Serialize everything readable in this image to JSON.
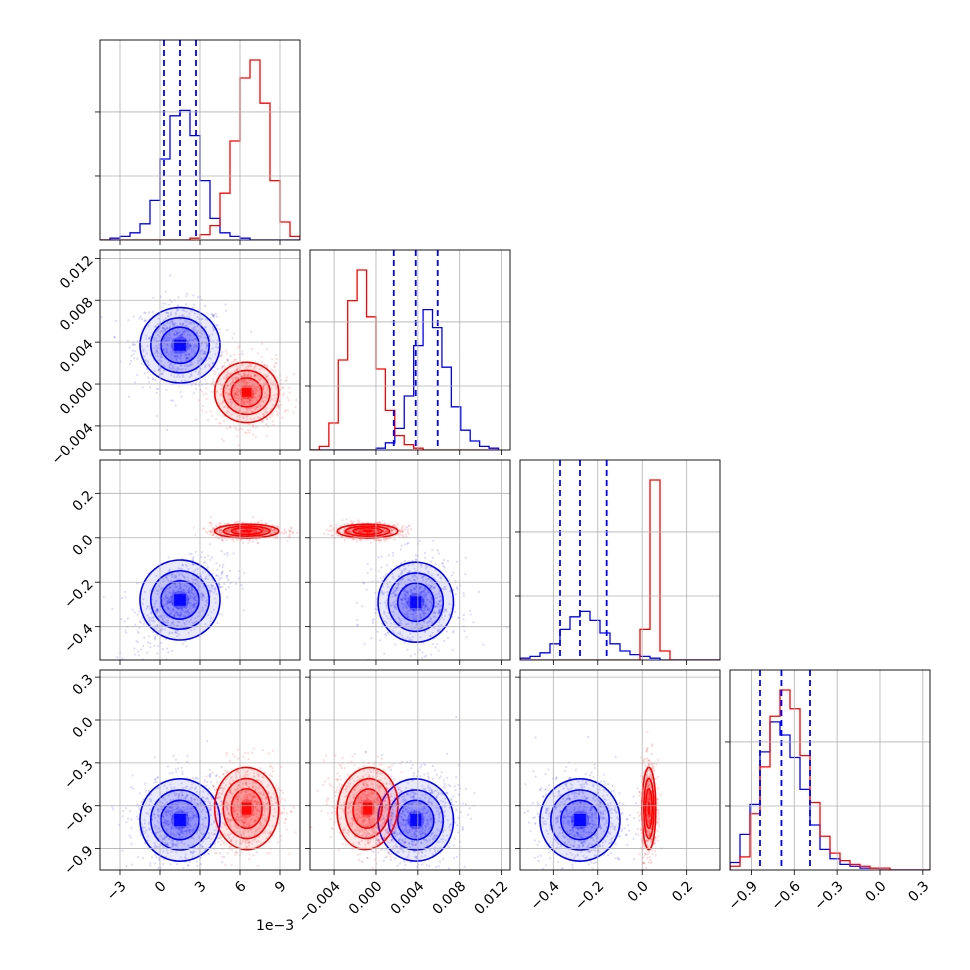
{
  "chart_data": {
    "type": "corner",
    "parameters": [
      "",
      "",
      "",
      ""
    ],
    "series": [
      {
        "name": "",
        "color": "#0000ff"
      },
      {
        "name": "",
        "color": "#ff0000"
      }
    ],
    "x_offset_label": "1e−3",
    "axes": [
      {
        "range": [
          -4.5,
          10.5
        ],
        "ticks": [
          -3,
          0,
          3,
          6,
          9
        ],
        "tick_labels": [
          "−3",
          "0",
          "3",
          "6",
          "9"
        ]
      },
      {
        "range": [
          -0.0063,
          0.0128
        ],
        "ticks": [
          -0.004,
          0.0,
          0.004,
          0.008,
          0.012
        ],
        "tick_labels": [
          "−0.004",
          "0.000",
          "0.004",
          "0.008",
          "0.012"
        ]
      },
      {
        "range": [
          -0.55,
          0.35
        ],
        "ticks": [
          -0.4,
          -0.2,
          0.0,
          0.2
        ],
        "tick_labels": [
          "−0.4",
          "−0.2",
          "0.0",
          "0.2"
        ]
      },
      {
        "range": [
          -1.05,
          0.35
        ],
        "ticks": [
          -0.9,
          -0.6,
          -0.3,
          0.0,
          0.3
        ],
        "tick_labels": [
          "−0.9",
          "−0.6",
          "−0.3",
          "0.0",
          "0.3"
        ]
      }
    ],
    "quantiles_blue": [
      [
        0.3,
        1.5,
        2.7
      ],
      [
        0.0017,
        0.0038,
        0.0059
      ],
      [
        -0.37,
        -0.28,
        -0.16
      ],
      [
        -0.84,
        -0.69,
        -0.49
      ]
    ],
    "histograms": [
      {
        "bin_edges": [
          -4.5,
          -3.75,
          -3.0,
          -2.25,
          -1.5,
          -0.75,
          0.0,
          0.75,
          1.5,
          2.25,
          3.0,
          3.75,
          4.5,
          5.25,
          6.0,
          6.75,
          7.5,
          8.25,
          9.0,
          9.75,
          10.5
        ],
        "blue": [
          0,
          0.01,
          0.02,
          0.04,
          0.09,
          0.22,
          0.45,
          0.69,
          0.72,
          0.58,
          0.33,
          0.12,
          0.04,
          0.02,
          0.01,
          0,
          0,
          0,
          0,
          0
        ],
        "red": [
          0,
          0,
          0,
          0,
          0,
          0,
          0,
          0,
          0,
          0.01,
          0.03,
          0.08,
          0.26,
          0.55,
          0.9,
          1.0,
          0.76,
          0.33,
          0.1,
          0.02
        ]
      },
      {
        "bin_edges": [
          -0.0063,
          -0.0054,
          -0.0045,
          -0.0036,
          -0.0027,
          -0.0018,
          -0.0009,
          0.0,
          0.0009,
          0.0018,
          0.0027,
          0.0036,
          0.0045,
          0.0054,
          0.0063,
          0.0072,
          0.0081,
          0.009,
          0.0099,
          0.0108,
          0.0117
        ],
        "blue": [
          0,
          0,
          0,
          0,
          0,
          0,
          0,
          0.01,
          0.04,
          0.12,
          0.3,
          0.58,
          0.78,
          0.68,
          0.46,
          0.24,
          0.11,
          0.05,
          0.02,
          0.01
        ],
        "red": [
          0,
          0.02,
          0.15,
          0.5,
          0.83,
          1.0,
          0.74,
          0.45,
          0.22,
          0.08,
          0.03,
          0.01,
          0,
          0,
          0,
          0,
          0,
          0,
          0,
          0
        ]
      },
      {
        "bin_edges": [
          -0.55,
          -0.505,
          -0.46,
          -0.415,
          -0.37,
          -0.325,
          -0.28,
          -0.235,
          -0.19,
          -0.145,
          -0.1,
          -0.055,
          -0.01,
          0.035,
          0.08,
          0.125,
          0.17,
          0.215,
          0.26,
          0.305,
          0.35
        ],
        "blue": [
          0.01,
          0.02,
          0.04,
          0.09,
          0.17,
          0.24,
          0.27,
          0.22,
          0.15,
          0.09,
          0.05,
          0.03,
          0.02,
          0.01,
          0,
          0,
          0,
          0,
          0,
          0
        ],
        "red": [
          0,
          0,
          0,
          0,
          0,
          0,
          0,
          0,
          0,
          0,
          0,
          0,
          0.17,
          1.0,
          0.05,
          0,
          0,
          0,
          0,
          0
        ]
      },
      {
        "bin_edges": [
          -1.05,
          -0.98,
          -0.91,
          -0.84,
          -0.77,
          -0.7,
          -0.63,
          -0.56,
          -0.49,
          -0.42,
          -0.35,
          -0.28,
          -0.21,
          -0.14,
          -0.07,
          0.0,
          0.07,
          0.14,
          0.21,
          0.28,
          0.35
        ],
        "blue": [
          0.04,
          0.19,
          0.35,
          0.63,
          0.79,
          0.72,
          0.6,
          0.43,
          0.24,
          0.11,
          0.06,
          0.03,
          0.02,
          0.01,
          0.01,
          0,
          0,
          0,
          0,
          0
        ],
        "red": [
          0.02,
          0.07,
          0.3,
          0.55,
          0.82,
          0.96,
          0.86,
          0.61,
          0.36,
          0.18,
          0.09,
          0.05,
          0.03,
          0.02,
          0.01,
          0.01,
          0,
          0,
          0,
          0
        ]
      }
    ],
    "pairs": [
      {
        "row": 1,
        "col": 0,
        "blue": {
          "mean": [
            1.5,
            0.0037
          ],
          "sd": [
            1.25,
            0.0015
          ],
          "rho": -0.05
        },
        "red": {
          "mean": [
            6.5,
            -0.0008
          ],
          "sd": [
            1.0,
            0.0012
          ],
          "rho": -0.05
        }
      },
      {
        "row": 2,
        "col": 0,
        "blue": {
          "mean": [
            1.5,
            -0.28
          ],
          "sd": [
            1.25,
            0.075
          ],
          "rho": 0.5
        },
        "red": {
          "mean": [
            6.5,
            0.03
          ],
          "sd": [
            1.0,
            0.013
          ],
          "rho": 0.0
        }
      },
      {
        "row": 2,
        "col": 1,
        "blue": {
          "mean": [
            0.0038,
            -0.29
          ],
          "sd": [
            0.0015,
            0.075
          ],
          "rho": -0.05
        },
        "red": {
          "mean": [
            -0.0008,
            0.03
          ],
          "sd": [
            0.0012,
            0.013
          ],
          "rho": 0.0
        }
      },
      {
        "row": 3,
        "col": 0,
        "blue": {
          "mean": [
            1.5,
            -0.7
          ],
          "sd": [
            1.25,
            0.12
          ],
          "rho": 0.1
        },
        "red": {
          "mean": [
            6.5,
            -0.62
          ],
          "sd": [
            1.0,
            0.12
          ],
          "rho": 0.05
        }
      },
      {
        "row": 3,
        "col": 1,
        "blue": {
          "mean": [
            0.0038,
            -0.7
          ],
          "sd": [
            0.0015,
            0.12
          ],
          "rho": 0.1
        },
        "red": {
          "mean": [
            -0.0008,
            -0.62
          ],
          "sd": [
            0.0012,
            0.12
          ],
          "rho": -0.2
        }
      },
      {
        "row": 3,
        "col": 2,
        "blue": {
          "mean": [
            -0.28,
            -0.7
          ],
          "sd": [
            0.075,
            0.12
          ],
          "rho": 0.0
        },
        "red": {
          "mean": [
            0.03,
            -0.62
          ],
          "sd": [
            0.013,
            0.12
          ],
          "rho": 0.0
        }
      }
    ]
  }
}
